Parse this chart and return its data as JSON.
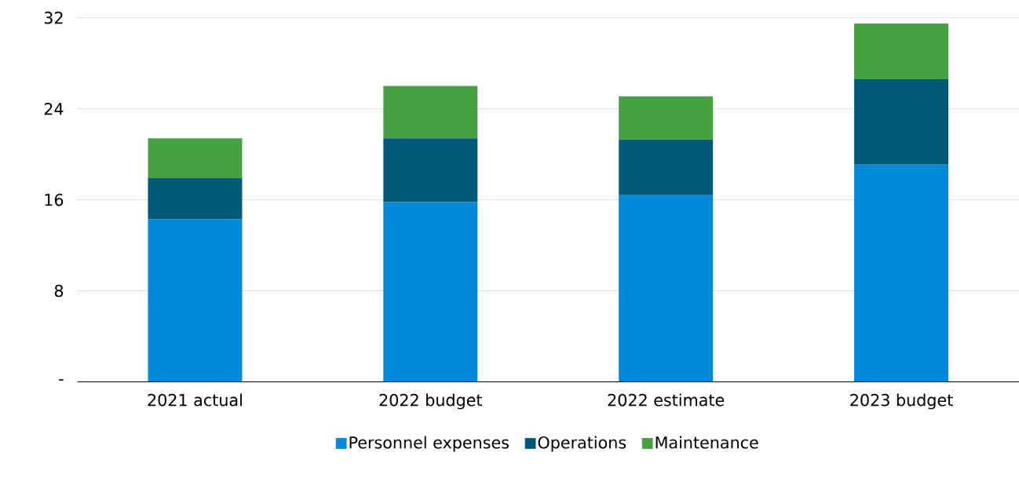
{
  "chart_data": {
    "type": "bar",
    "stacked": true,
    "categories": [
      "2021 actual",
      "2022 budget",
      "2022 estimate",
      "2023 budget"
    ],
    "series": [
      {
        "name": "Personnel expenses",
        "color": "#0288d8",
        "values": [
          14.3,
          15.8,
          16.4,
          19.1
        ]
      },
      {
        "name": "Operations",
        "color": "#005a78",
        "values": [
          3.6,
          5.6,
          4.9,
          7.5
        ]
      },
      {
        "name": "Maintenance",
        "color": "#46a142",
        "values": [
          3.5,
          4.6,
          3.8,
          4.9
        ]
      }
    ],
    "ylim": [
      0,
      32
    ],
    "yticks": [
      {
        "value": 0,
        "label": "-"
      },
      8,
      16,
      24,
      32
    ],
    "grid": "y",
    "legend": "bottom"
  }
}
